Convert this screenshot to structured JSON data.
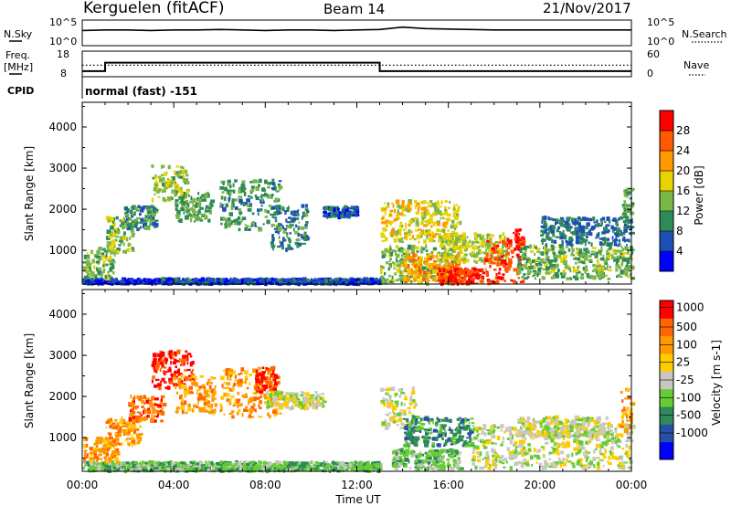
{
  "header": {
    "station": "Kerguelen (fitACF)",
    "beam": "Beam 14",
    "date": "21/Nov/2017"
  },
  "panels": {
    "nsky": {
      "label": "N.Sky",
      "ticks": [
        "10^5",
        "10^0"
      ],
      "right_label": "N.Search",
      "right_ticks": [
        "10^5",
        "10^0"
      ]
    },
    "freq": {
      "label_line1": "Freq.",
      "label_line2": "[MHz]",
      "ticks": [
        "18",
        "8"
      ],
      "right_label": "Nave",
      "right_ticks": [
        "60",
        "0"
      ]
    },
    "cpid": {
      "label": "CPID",
      "text": "normal (fast) -151"
    }
  },
  "chart_data": [
    {
      "type": "heatmap",
      "title": "",
      "xlabel": "",
      "ylabel": "Slant Range [km]",
      "yticks": [
        "4000",
        "3000",
        "2000",
        "1000"
      ],
      "ylim": [
        180,
        4600
      ],
      "xlim": [
        0,
        24
      ],
      "colorbar": {
        "label": "Power [dB]",
        "ticks": [
          "28",
          "24",
          "20",
          "16",
          "12",
          "8",
          "4"
        ],
        "range": [
          0,
          32
        ],
        "colors": [
          "#0000ff",
          "#1e4fb5",
          "#2e8b57",
          "#7ab648",
          "#e8d200",
          "#ff9900",
          "#ff5a00",
          "#ff0000"
        ]
      },
      "blobs": [
        {
          "t0": 0.0,
          "t1": 13.0,
          "r0": 180,
          "r1": 300,
          "v": 5
        },
        {
          "t0": 0.0,
          "t1": 1.5,
          "r0": 300,
          "r1": 1050,
          "v": 13
        },
        {
          "t0": 1.0,
          "t1": 2.2,
          "r0": 900,
          "r1": 1800,
          "v": 14
        },
        {
          "t0": 1.8,
          "t1": 3.2,
          "r0": 1500,
          "r1": 2100,
          "v": 10
        },
        {
          "t0": 3.0,
          "t1": 4.6,
          "r0": 2200,
          "r1": 3050,
          "v": 15
        },
        {
          "t0": 4.0,
          "t1": 5.6,
          "r0": 1700,
          "r1": 2400,
          "v": 12
        },
        {
          "t0": 6.0,
          "t1": 8.6,
          "r0": 1500,
          "r1": 2700,
          "v": 11
        },
        {
          "t0": 8.2,
          "t1": 9.8,
          "r0": 1000,
          "r1": 2100,
          "v": 9
        },
        {
          "t0": 10.5,
          "t1": 12.0,
          "r0": 1800,
          "r1": 2050,
          "v": 6
        },
        {
          "t0": 13.0,
          "t1": 16.5,
          "r0": 1200,
          "r1": 2200,
          "v": 18
        },
        {
          "t0": 13.0,
          "t1": 16.5,
          "r0": 180,
          "r1": 1100,
          "v": 14
        },
        {
          "t0": 14.0,
          "t1": 16.5,
          "r0": 250,
          "r1": 900,
          "v": 22
        },
        {
          "t0": 15.5,
          "t1": 18.5,
          "r0": 700,
          "r1": 1400,
          "v": 16
        },
        {
          "t0": 15.5,
          "t1": 17.5,
          "r0": 180,
          "r1": 550,
          "v": 29
        },
        {
          "t0": 17.5,
          "t1": 19.3,
          "r0": 200,
          "r1": 1300,
          "v": 27
        },
        {
          "t0": 18.8,
          "t1": 19.2,
          "r0": 1000,
          "r1": 1500,
          "v": 30
        },
        {
          "t0": 19.0,
          "t1": 24.0,
          "r0": 300,
          "r1": 1100,
          "v": 13
        },
        {
          "t0": 20.0,
          "t1": 24.0,
          "r0": 1100,
          "r1": 1800,
          "v": 8
        },
        {
          "t0": 23.5,
          "t1": 24.0,
          "r0": 1800,
          "r1": 2500,
          "v": 12
        }
      ]
    },
    {
      "type": "heatmap",
      "title": "",
      "xlabel": "Time UT",
      "ylabel": "Slant Range [km]",
      "yticks": [
        "4000",
        "3000",
        "2000",
        "1000"
      ],
      "ylim": [
        180,
        4600
      ],
      "xlim": [
        0,
        24
      ],
      "xticks": [
        "00:00",
        "04:00",
        "08:00",
        "12:00",
        "16:00",
        "20:00",
        "00:00"
      ],
      "colorbar": {
        "label": "Velocity [m s-1]",
        "ticks": [
          "1000",
          "500",
          "100",
          "25",
          "-25",
          "-100",
          "-500",
          "-1000"
        ],
        "colors": [
          "#0000ff",
          "#2850a8",
          "#2e8b57",
          "#66cc33",
          "#c8c8c0",
          "#ffcc00",
          "#ff9900",
          "#ff6600",
          "#ff0000"
        ]
      },
      "blobs": [
        {
          "t0": 0.0,
          "t1": 13.0,
          "r0": 180,
          "r1": 400,
          "v": 3
        },
        {
          "t0": 0.0,
          "t1": 1.5,
          "r0": 400,
          "r1": 1000,
          "v": 6
        },
        {
          "t0": 1.0,
          "t1": 2.5,
          "r0": 800,
          "r1": 1500,
          "v": 6
        },
        {
          "t0": 2.0,
          "t1": 3.5,
          "r0": 1400,
          "r1": 2000,
          "v": 7
        },
        {
          "t0": 3.0,
          "t1": 4.8,
          "r0": 2200,
          "r1": 3100,
          "v": 8
        },
        {
          "t0": 4.0,
          "t1": 5.8,
          "r0": 1600,
          "r1": 2500,
          "v": 6
        },
        {
          "t0": 6.0,
          "t1": 8.6,
          "r0": 1500,
          "r1": 2700,
          "v": 6
        },
        {
          "t0": 7.5,
          "t1": 8.4,
          "r0": 2100,
          "r1": 2700,
          "v": 8
        },
        {
          "t0": 8.0,
          "t1": 10.5,
          "r0": 1700,
          "r1": 2100,
          "v": 4
        },
        {
          "t0": 13.0,
          "t1": 14.5,
          "r0": 1200,
          "r1": 2200,
          "v": 4
        },
        {
          "t0": 14.0,
          "t1": 17.0,
          "r0": 800,
          "r1": 1500,
          "v": 2
        },
        {
          "t0": 13.5,
          "t1": 16.5,
          "r0": 200,
          "r1": 700,
          "v": 3
        },
        {
          "t0": 17.0,
          "t1": 24.0,
          "r0": 250,
          "r1": 1300,
          "v": 4
        },
        {
          "t0": 19.0,
          "t1": 23.0,
          "r0": 1000,
          "r1": 1500,
          "v": 4
        },
        {
          "t0": 23.5,
          "t1": 24.0,
          "r0": 1100,
          "r1": 2200,
          "v": 6
        }
      ]
    }
  ],
  "nsky_trace": [
    3.2,
    3.3,
    3.3,
    3.2,
    3.3,
    3.3,
    3.4,
    3.3,
    3.2,
    3.3,
    3.3,
    3.2,
    3.3,
    3.4,
    3.9,
    3.6,
    3.5,
    3.4,
    3.3,
    3.3,
    3.3,
    3.3,
    3.3,
    3.3,
    3.3
  ],
  "freq_steps": [
    {
      "t0": 0.0,
      "t1": 1.0,
      "f": 10.2
    },
    {
      "t0": 1.0,
      "t1": 13.0,
      "f": 13.5
    },
    {
      "t0": 13.0,
      "t1": 24.0,
      "f": 10.2
    }
  ],
  "nave_level": 12.5
}
